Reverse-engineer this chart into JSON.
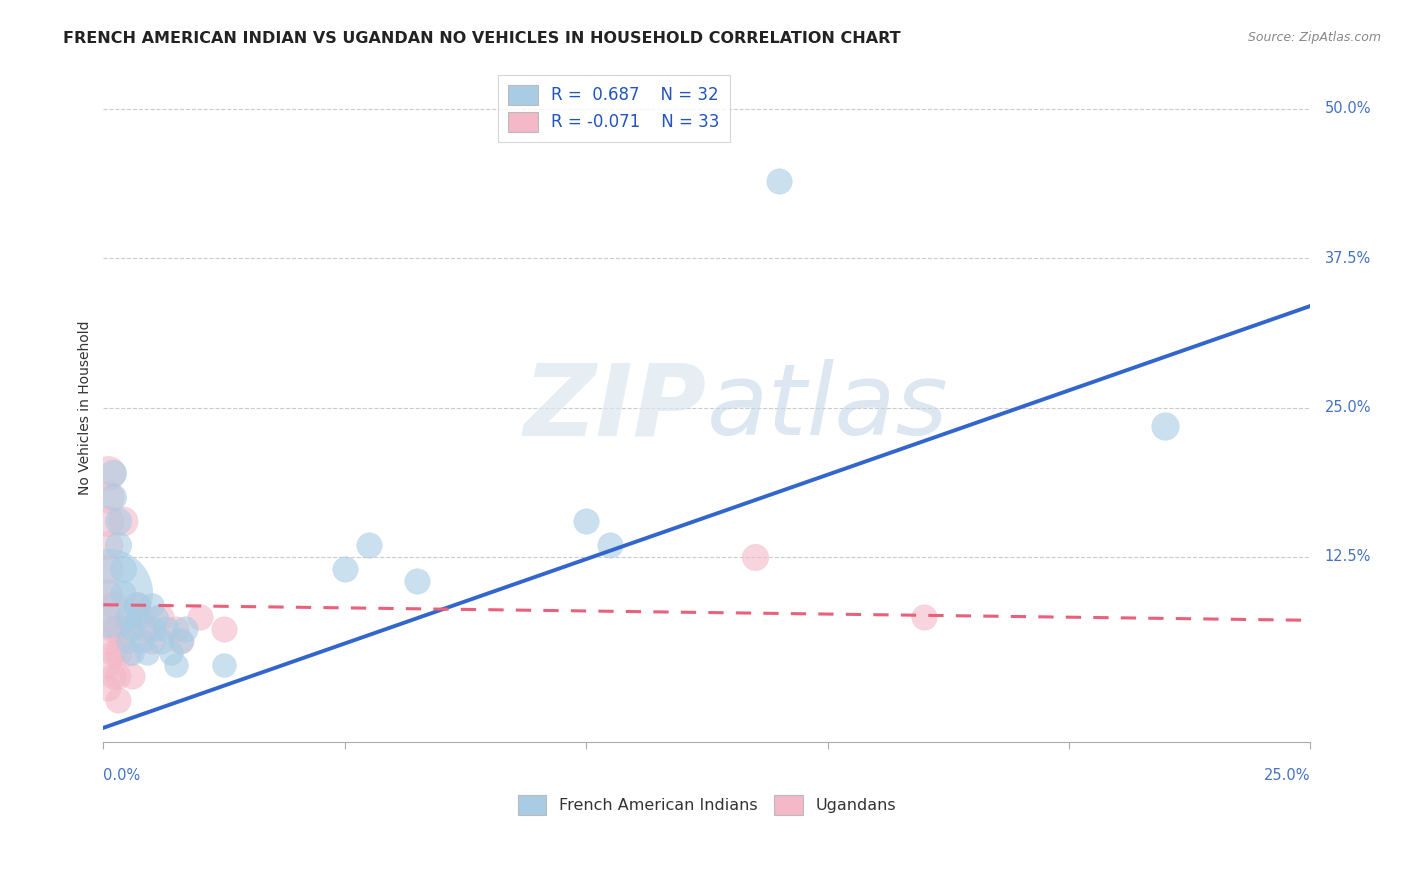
{
  "title": "FRENCH AMERICAN INDIAN VS UGANDAN NO VEHICLES IN HOUSEHOLD CORRELATION CHART",
  "source": "Source: ZipAtlas.com",
  "ylabel": "No Vehicles in Household",
  "yticks": [
    0.0,
    0.125,
    0.25,
    0.375,
    0.5
  ],
  "ytick_labels": [
    "",
    "12.5%",
    "25.0%",
    "37.5%",
    "50.0%"
  ],
  "xlim": [
    0.0,
    0.25
  ],
  "ylim": [
    -0.03,
    0.53
  ],
  "blue_R": 0.687,
  "blue_N": 32,
  "pink_R": -0.071,
  "pink_N": 33,
  "blue_color": "#a8cce4",
  "pink_color": "#f4b8c8",
  "blue_line_color": "#3366cc",
  "pink_line_color": "#e8607a",
  "watermark_zip": "ZIP",
  "watermark_atlas": "atlas",
  "blue_points": [
    [
      0.001,
      0.095,
      180
    ],
    [
      0.002,
      0.195,
      40
    ],
    [
      0.002,
      0.175,
      40
    ],
    [
      0.003,
      0.155,
      40
    ],
    [
      0.003,
      0.135,
      40
    ],
    [
      0.004,
      0.115,
      40
    ],
    [
      0.004,
      0.095,
      38
    ],
    [
      0.005,
      0.075,
      38
    ],
    [
      0.005,
      0.055,
      35
    ],
    [
      0.006,
      0.045,
      35
    ],
    [
      0.006,
      0.065,
      35
    ],
    [
      0.007,
      0.085,
      38
    ],
    [
      0.007,
      0.075,
      35
    ],
    [
      0.008,
      0.055,
      35
    ],
    [
      0.009,
      0.045,
      35
    ],
    [
      0.01,
      0.065,
      38
    ],
    [
      0.01,
      0.085,
      35
    ],
    [
      0.011,
      0.075,
      35
    ],
    [
      0.012,
      0.055,
      38
    ],
    [
      0.013,
      0.065,
      38
    ],
    [
      0.014,
      0.045,
      35
    ],
    [
      0.015,
      0.035,
      35
    ],
    [
      0.016,
      0.055,
      35
    ],
    [
      0.017,
      0.065,
      38
    ],
    [
      0.05,
      0.115,
      38
    ],
    [
      0.055,
      0.135,
      38
    ],
    [
      0.065,
      0.105,
      38
    ],
    [
      0.1,
      0.155,
      38
    ],
    [
      0.105,
      0.135,
      38
    ],
    [
      0.14,
      0.44,
      38
    ],
    [
      0.22,
      0.235,
      42
    ],
    [
      0.025,
      0.035,
      35
    ]
  ],
  "pink_points": [
    [
      0.001,
      0.195,
      55
    ],
    [
      0.001,
      0.175,
      50
    ],
    [
      0.001,
      0.155,
      48
    ],
    [
      0.001,
      0.135,
      45
    ],
    [
      0.001,
      0.115,
      45
    ],
    [
      0.001,
      0.095,
      42
    ],
    [
      0.001,
      0.075,
      42
    ],
    [
      0.001,
      0.055,
      40
    ],
    [
      0.001,
      0.035,
      38
    ],
    [
      0.001,
      0.015,
      38
    ],
    [
      0.002,
      0.085,
      42
    ],
    [
      0.002,
      0.065,
      40
    ],
    [
      0.002,
      0.045,
      38
    ],
    [
      0.002,
      0.025,
      38
    ],
    [
      0.003,
      0.065,
      42
    ],
    [
      0.003,
      0.045,
      40
    ],
    [
      0.003,
      0.025,
      38
    ],
    [
      0.003,
      0.005,
      38
    ],
    [
      0.004,
      0.155,
      45
    ],
    [
      0.005,
      0.065,
      40
    ],
    [
      0.005,
      0.045,
      38
    ],
    [
      0.006,
      0.025,
      38
    ],
    [
      0.007,
      0.085,
      40
    ],
    [
      0.008,
      0.075,
      38
    ],
    [
      0.009,
      0.065,
      38
    ],
    [
      0.01,
      0.055,
      38
    ],
    [
      0.012,
      0.075,
      38
    ],
    [
      0.015,
      0.065,
      38
    ],
    [
      0.016,
      0.055,
      38
    ],
    [
      0.02,
      0.075,
      38
    ],
    [
      0.025,
      0.065,
      38
    ],
    [
      0.135,
      0.125,
      40
    ],
    [
      0.17,
      0.075,
      38
    ]
  ],
  "blue_trendline": [
    [
      0.0,
      -0.018
    ],
    [
      0.25,
      0.335
    ]
  ],
  "pink_trendline": [
    [
      0.0,
      0.085
    ],
    [
      0.25,
      0.072
    ]
  ]
}
